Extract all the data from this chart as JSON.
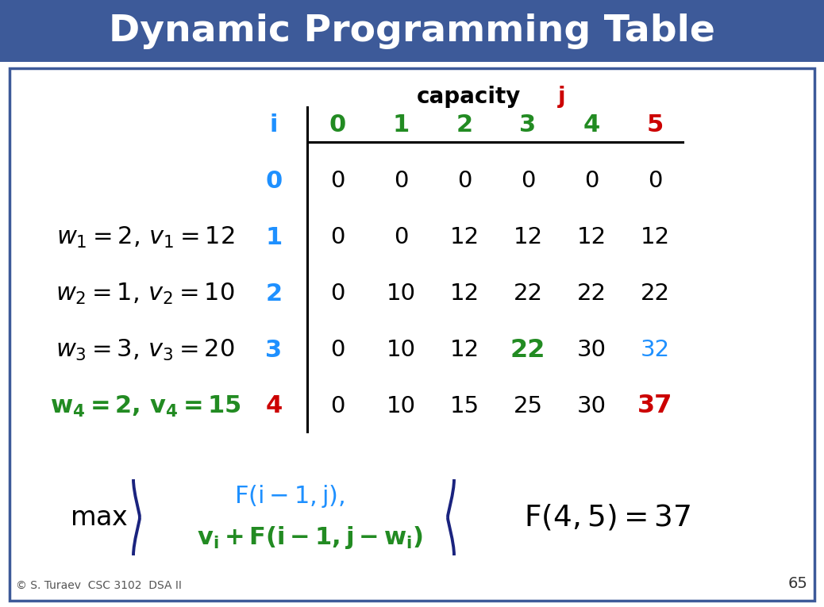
{
  "title": "Dynamic Programming Table",
  "title_bg_color": "#3d5a99",
  "title_text_color": "#ffffff",
  "border_color": "#3d5a99",
  "bg_color": "#ffffff",
  "capacity_label": "capacity",
  "j_label": "j",
  "j_color": "#cc0000",
  "col_headers": [
    "i",
    "0",
    "1",
    "2",
    "3",
    "4",
    "5"
  ],
  "col_header_colors": [
    "#1e90ff",
    "#228B22",
    "#228B22",
    "#228B22",
    "#228B22",
    "#228B22",
    "#cc0000"
  ],
  "row_headers": [
    "0",
    "1",
    "2",
    "3",
    "4"
  ],
  "row_header_colors": [
    "#1e90ff",
    "#1e90ff",
    "#1e90ff",
    "#1e90ff",
    "#cc0000"
  ],
  "table_data": [
    [
      0,
      0,
      0,
      0,
      0,
      0
    ],
    [
      0,
      0,
      12,
      12,
      12,
      12
    ],
    [
      0,
      10,
      12,
      22,
      22,
      22
    ],
    [
      0,
      10,
      12,
      22,
      30,
      32
    ],
    [
      0,
      10,
      15,
      25,
      30,
      37
    ]
  ],
  "cell_colors": [
    [
      "#000000",
      "#000000",
      "#000000",
      "#000000",
      "#000000",
      "#000000"
    ],
    [
      "#000000",
      "#000000",
      "#000000",
      "#000000",
      "#000000",
      "#000000"
    ],
    [
      "#000000",
      "#000000",
      "#000000",
      "#000000",
      "#000000",
      "#000000"
    ],
    [
      "#000000",
      "#000000",
      "#000000",
      "#228B22",
      "#000000",
      "#1e90ff"
    ],
    [
      "#000000",
      "#000000",
      "#000000",
      "#000000",
      "#000000",
      "#cc0000"
    ]
  ],
  "cell_bold": [
    [
      false,
      false,
      false,
      false,
      false,
      false
    ],
    [
      false,
      false,
      false,
      false,
      false,
      false
    ],
    [
      false,
      false,
      false,
      false,
      false,
      false
    ],
    [
      false,
      false,
      false,
      true,
      false,
      false
    ],
    [
      false,
      false,
      false,
      false,
      false,
      true
    ]
  ],
  "item_label_colors": [
    "#000000",
    "#000000",
    "#000000",
    "#228B22"
  ],
  "item_label_bold_idx": [
    3
  ],
  "formula_color1": "#1e90ff",
  "formula_color2": "#228B22",
  "brace_color": "#1a237e",
  "result_color": "#000000",
  "copyright": "© S. Turaev  CSC 3102  DSA II",
  "page_num": "65",
  "figsize": [
    10.38,
    7.65
  ],
  "dpi": 100
}
